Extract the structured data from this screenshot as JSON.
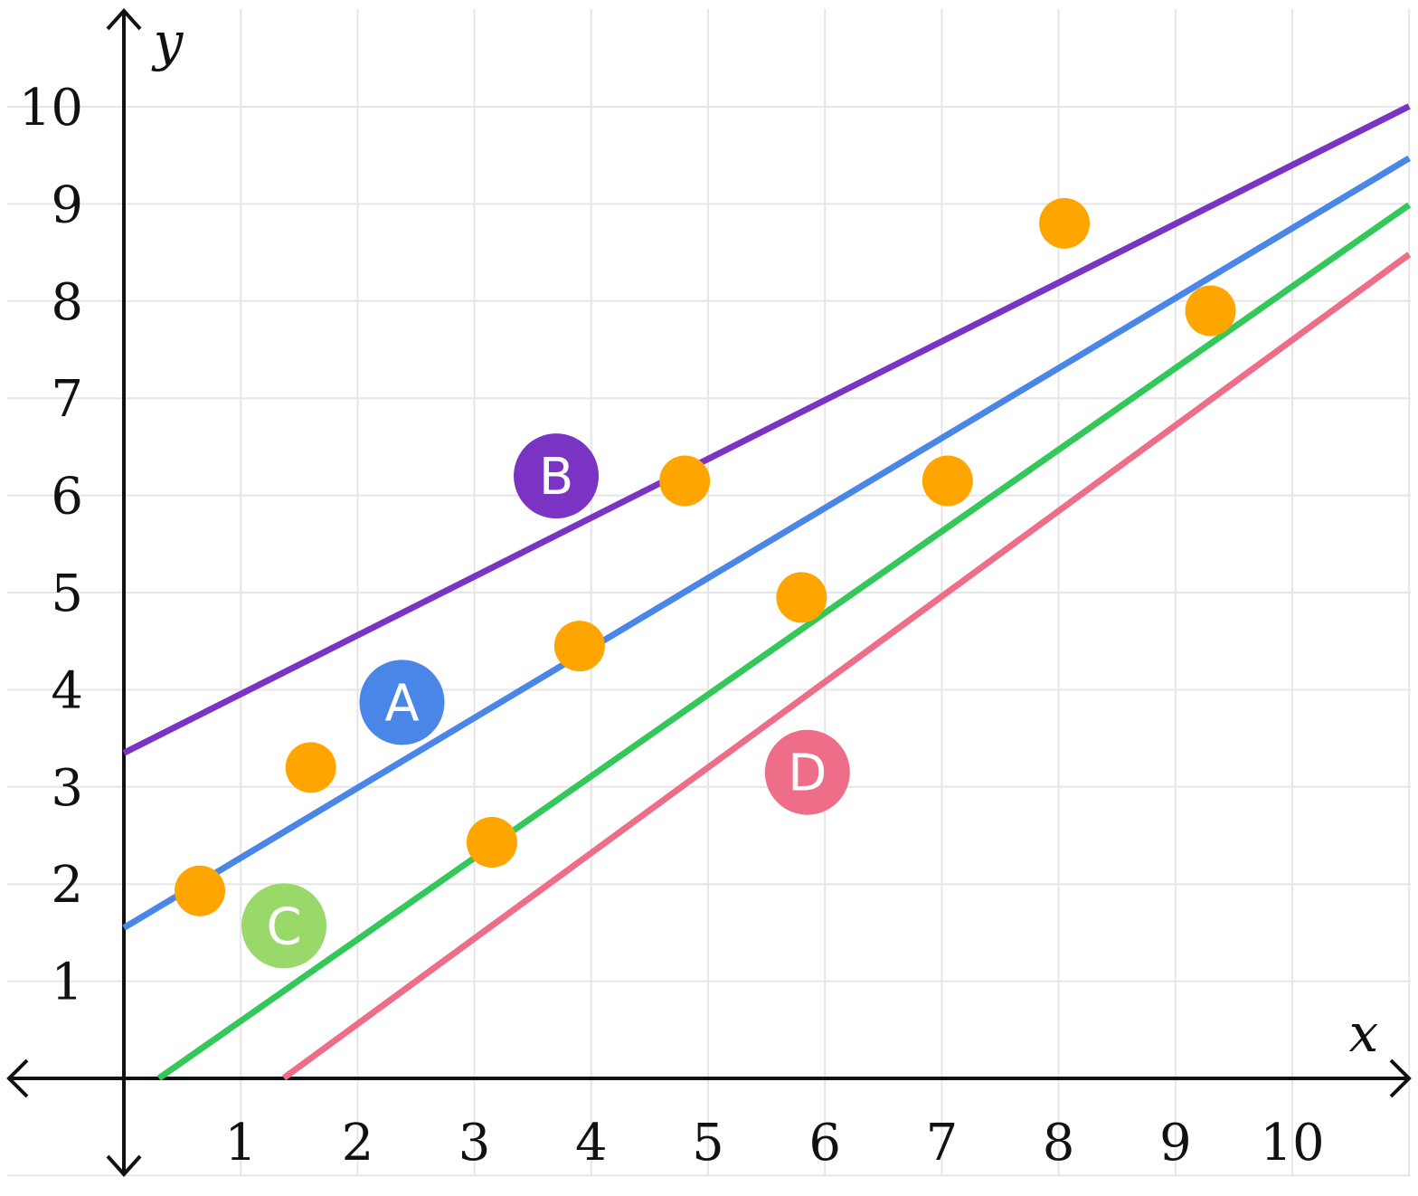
{
  "chart_data": {
    "type": "scatter",
    "title": "",
    "xlabel": "x",
    "ylabel": "y",
    "xlim": [
      -1,
      11
    ],
    "ylim": [
      -1,
      11
    ],
    "grid": true,
    "x_ticks": [
      "1",
      "2",
      "3",
      "4",
      "5",
      "6",
      "7",
      "8",
      "9",
      "10"
    ],
    "y_ticks": [
      "1",
      "2",
      "3",
      "4",
      "5",
      "6",
      "7",
      "8",
      "9",
      "10"
    ],
    "points": {
      "color": "#FFA500",
      "x": [
        0.65,
        1.6,
        3.15,
        3.9,
        4.8,
        5.8,
        7.05,
        8.05,
        9.3
      ],
      "y": [
        1.93,
        3.2,
        2.43,
        4.45,
        6.15,
        4.95,
        6.15,
        8.8,
        7.9
      ]
    },
    "lines": [
      {
        "name": "A",
        "color": "#4A86E8",
        "slope": 0.72,
        "intercept": 1.55,
        "x_range": [
          0,
          11
        ]
      },
      {
        "name": "B",
        "color": "#7B33C4",
        "slope": 0.605,
        "intercept": 3.35,
        "x_range": [
          0,
          11
        ]
      },
      {
        "name": "C",
        "color": "#34C759",
        "slope": 0.84,
        "intercept": -0.25,
        "x_range": [
          0.3,
          11
        ]
      },
      {
        "name": "D",
        "color": "#EE6E8A",
        "slope": 0.88,
        "intercept": -1.2,
        "x_range": [
          1.37,
          11
        ]
      }
    ],
    "annotations": [
      {
        "label": "A",
        "color": "#4A86E8",
        "x": 2.38,
        "y": 3.87
      },
      {
        "label": "B",
        "color": "#7B33C4",
        "x": 3.7,
        "y": 6.2
      },
      {
        "label": "C",
        "color": "#99D96A",
        "x": 1.37,
        "y": 1.57
      },
      {
        "label": "D",
        "color": "#EE6E8A",
        "x": 5.85,
        "y": 3.15
      }
    ]
  }
}
